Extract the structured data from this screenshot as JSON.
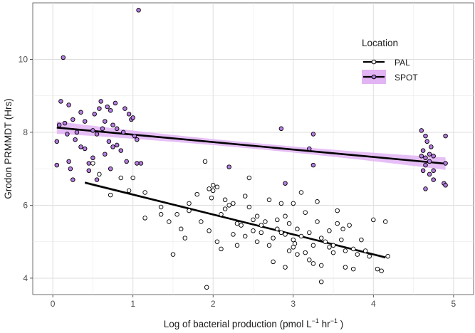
{
  "chart_data": {
    "type": "scatter",
    "title": "",
    "xlabel": "Log of bacterial production (pmol  L",
    "xlabel_sup1": "−1",
    "xlabel_mid": "  hr",
    "xlabel_sup2": "−1",
    "xlabel_end": " )",
    "ylabel": "Grodon PRMMDT (Hrs)",
    "xlim": [
      -0.25,
      5.25
    ],
    "ylim": [
      3.55,
      11.55
    ],
    "xticks": [
      0,
      1,
      2,
      3,
      4,
      5
    ],
    "yticks": [
      4,
      6,
      8,
      10
    ],
    "xtick_labels": [
      "0",
      "1",
      "2",
      "3",
      "4",
      "5"
    ],
    "ytick_labels": [
      "4",
      "6",
      "8",
      "10"
    ],
    "grid": true,
    "legend": {
      "title": "Location",
      "placement": "top-right",
      "entries": [
        "PAL",
        "SPOT"
      ]
    },
    "series": [
      {
        "name": "SPOT",
        "color": "#b57be0",
        "ribbon_color": "#e2b4f4",
        "line_color": "#000000",
        "fit": {
          "x0": 0.05,
          "y0": 8.13,
          "x1": 4.9,
          "y1": 7.14
        },
        "ribbon_halfwidth_ends": 0.17,
        "ribbon_halfwidth_mid": 0.08,
        "points": [
          [
            0.05,
            7.75
          ],
          [
            0.05,
            7.1
          ],
          [
            0.08,
            8.2
          ],
          [
            0.1,
            8.85
          ],
          [
            0.13,
            10.05
          ],
          [
            0.15,
            8.25
          ],
          [
            0.18,
            7.95
          ],
          [
            0.2,
            8.75
          ],
          [
            0.2,
            7.2
          ],
          [
            0.22,
            7.0
          ],
          [
            0.25,
            6.7
          ],
          [
            0.25,
            8.35
          ],
          [
            0.28,
            7.8
          ],
          [
            0.3,
            8.0
          ],
          [
            0.35,
            8.55
          ],
          [
            0.35,
            7.6
          ],
          [
            0.4,
            7.55
          ],
          [
            0.4,
            8.3
          ],
          [
            0.45,
            7.15
          ],
          [
            0.45,
            6.95
          ],
          [
            0.5,
            8.05
          ],
          [
            0.5,
            7.3
          ],
          [
            0.52,
            8.5
          ],
          [
            0.55,
            7.95
          ],
          [
            0.55,
            6.7
          ],
          [
            0.58,
            8.65
          ],
          [
            0.6,
            8.85
          ],
          [
            0.62,
            8.1
          ],
          [
            0.65,
            7.4
          ],
          [
            0.65,
            8.3
          ],
          [
            0.68,
            8.7
          ],
          [
            0.7,
            7.75
          ],
          [
            0.72,
            7.0
          ],
          [
            0.72,
            8.6
          ],
          [
            0.75,
            8.2
          ],
          [
            0.75,
            7.6
          ],
          [
            0.78,
            8.8
          ],
          [
            0.8,
            7.65
          ],
          [
            0.8,
            8.1
          ],
          [
            0.85,
            7.5
          ],
          [
            0.88,
            8.0
          ],
          [
            0.9,
            8.65
          ],
          [
            0.92,
            7.2
          ],
          [
            0.95,
            8.5
          ],
          [
            0.98,
            8.35
          ],
          [
            1.0,
            8.4
          ],
          [
            1.02,
            7.9
          ],
          [
            1.05,
            7.15
          ],
          [
            1.05,
            7.8
          ],
          [
            1.07,
            11.35
          ],
          [
            1.1,
            7.15
          ],
          [
            2.2,
            7.05
          ],
          [
            2.85,
            8.1
          ],
          [
            2.9,
            6.6
          ],
          [
            3.2,
            7.55
          ],
          [
            3.25,
            7.1
          ],
          [
            3.25,
            7.95
          ],
          [
            4.6,
            8.05
          ],
          [
            4.6,
            7.35
          ],
          [
            4.62,
            6.95
          ],
          [
            4.62,
            7.5
          ],
          [
            4.65,
            7.3
          ],
          [
            4.65,
            6.45
          ],
          [
            4.65,
            7.1
          ],
          [
            4.67,
            7.75
          ],
          [
            4.7,
            7.4
          ],
          [
            4.7,
            6.85
          ],
          [
            4.7,
            7.2
          ],
          [
            4.72,
            7.6
          ],
          [
            4.75,
            6.7
          ],
          [
            4.75,
            7.35
          ],
          [
            4.75,
            6.95
          ],
          [
            4.88,
            6.6
          ],
          [
            4.9,
            6.55
          ],
          [
            4.9,
            7.9
          ],
          [
            4.9,
            7.15
          ],
          [
            4.65,
            7.9
          ]
        ]
      },
      {
        "name": "PAL",
        "color": "#ffffff",
        "ribbon_color": "#d9d9d9",
        "line_color": "#000000",
        "fit": {
          "x0": 0.4,
          "y0": 6.62,
          "x1": 4.15,
          "y1": 4.57
        },
        "ribbon_halfwidth_ends": 0.05,
        "ribbon_halfwidth_mid": 0.02,
        "points": [
          [
            0.5,
            7.15
          ],
          [
            0.58,
            6.85
          ],
          [
            0.72,
            6.28
          ],
          [
            0.85,
            6.75
          ],
          [
            0.95,
            6.4
          ],
          [
            1.0,
            6.75
          ],
          [
            1.15,
            6.35
          ],
          [
            1.15,
            5.65
          ],
          [
            1.35,
            5.95
          ],
          [
            1.35,
            5.75
          ],
          [
            1.45,
            5.55
          ],
          [
            1.5,
            4.65
          ],
          [
            1.55,
            5.75
          ],
          [
            1.6,
            5.35
          ],
          [
            1.65,
            5.1
          ],
          [
            1.7,
            6.05
          ],
          [
            1.7,
            5.85
          ],
          [
            1.8,
            6.3
          ],
          [
            1.85,
            5.55
          ],
          [
            1.9,
            7.2
          ],
          [
            1.92,
            3.75
          ],
          [
            1.95,
            6.45
          ],
          [
            1.95,
            5.3
          ],
          [
            1.98,
            6.2
          ],
          [
            2.0,
            6.4
          ],
          [
            2.0,
            6.55
          ],
          [
            2.05,
            5.0
          ],
          [
            2.05,
            6.5
          ],
          [
            2.1,
            4.8
          ],
          [
            2.1,
            5.75
          ],
          [
            2.15,
            6.15
          ],
          [
            2.15,
            5.9
          ],
          [
            2.2,
            6.0
          ],
          [
            2.25,
            6.05
          ],
          [
            2.25,
            5.2
          ],
          [
            2.3,
            4.9
          ],
          [
            2.3,
            5.5
          ],
          [
            2.35,
            5.45
          ],
          [
            2.4,
            5.15
          ],
          [
            2.4,
            6.25
          ],
          [
            2.45,
            5.95
          ],
          [
            2.45,
            6.75
          ],
          [
            2.5,
            5.3
          ],
          [
            2.5,
            5.6
          ],
          [
            2.55,
            5.0
          ],
          [
            2.55,
            5.7
          ],
          [
            2.6,
            5.25
          ],
          [
            2.6,
            5.45
          ],
          [
            2.65,
            5.55
          ],
          [
            2.7,
            4.9
          ],
          [
            2.7,
            6.15
          ],
          [
            2.75,
            5.1
          ],
          [
            2.75,
            4.45
          ],
          [
            2.8,
            5.35
          ],
          [
            2.8,
            5.6
          ],
          [
            2.85,
            5.25
          ],
          [
            2.85,
            6.05
          ],
          [
            2.9,
            4.3
          ],
          [
            2.9,
            5.2
          ],
          [
            2.95,
            5.5
          ],
          [
            2.95,
            4.75
          ],
          [
            3.0,
            6.05
          ],
          [
            3.0,
            5.05
          ],
          [
            3.0,
            4.85
          ],
          [
            3.02,
            4.95
          ],
          [
            3.05,
            5.35
          ],
          [
            3.05,
            4.65
          ],
          [
            3.1,
            6.35
          ],
          [
            3.1,
            5.15
          ],
          [
            3.15,
            4.7
          ],
          [
            3.15,
            5.8
          ],
          [
            3.2,
            5.25
          ],
          [
            3.2,
            4.5
          ],
          [
            3.25,
            4.9
          ],
          [
            3.25,
            4.4
          ],
          [
            3.3,
            5.55
          ],
          [
            3.3,
            6.1
          ],
          [
            3.35,
            5.1
          ],
          [
            3.35,
            4.35
          ],
          [
            3.4,
            5.0
          ],
          [
            3.45,
            5.3
          ],
          [
            3.45,
            4.85
          ],
          [
            3.5,
            4.7
          ],
          [
            3.5,
            4.9
          ],
          [
            3.55,
            5.85
          ],
          [
            3.55,
            5.5
          ],
          [
            3.6,
            5.05
          ],
          [
            3.65,
            4.75
          ],
          [
            3.65,
            4.3
          ],
          [
            3.7,
            5.45
          ],
          [
            3.75,
            4.8
          ],
          [
            3.75,
            4.25
          ],
          [
            3.8,
            4.65
          ],
          [
            3.85,
            5.05
          ],
          [
            3.9,
            4.75
          ],
          [
            3.95,
            4.6
          ],
          [
            4.0,
            5.6
          ],
          [
            4.05,
            4.25
          ],
          [
            4.1,
            4.2
          ],
          [
            4.15,
            5.55
          ],
          [
            4.18,
            4.6
          ],
          [
            3.35,
            3.9
          ],
          [
            3.62,
            5.35
          ],
          [
            2.9,
            5.7
          ]
        ]
      }
    ]
  }
}
